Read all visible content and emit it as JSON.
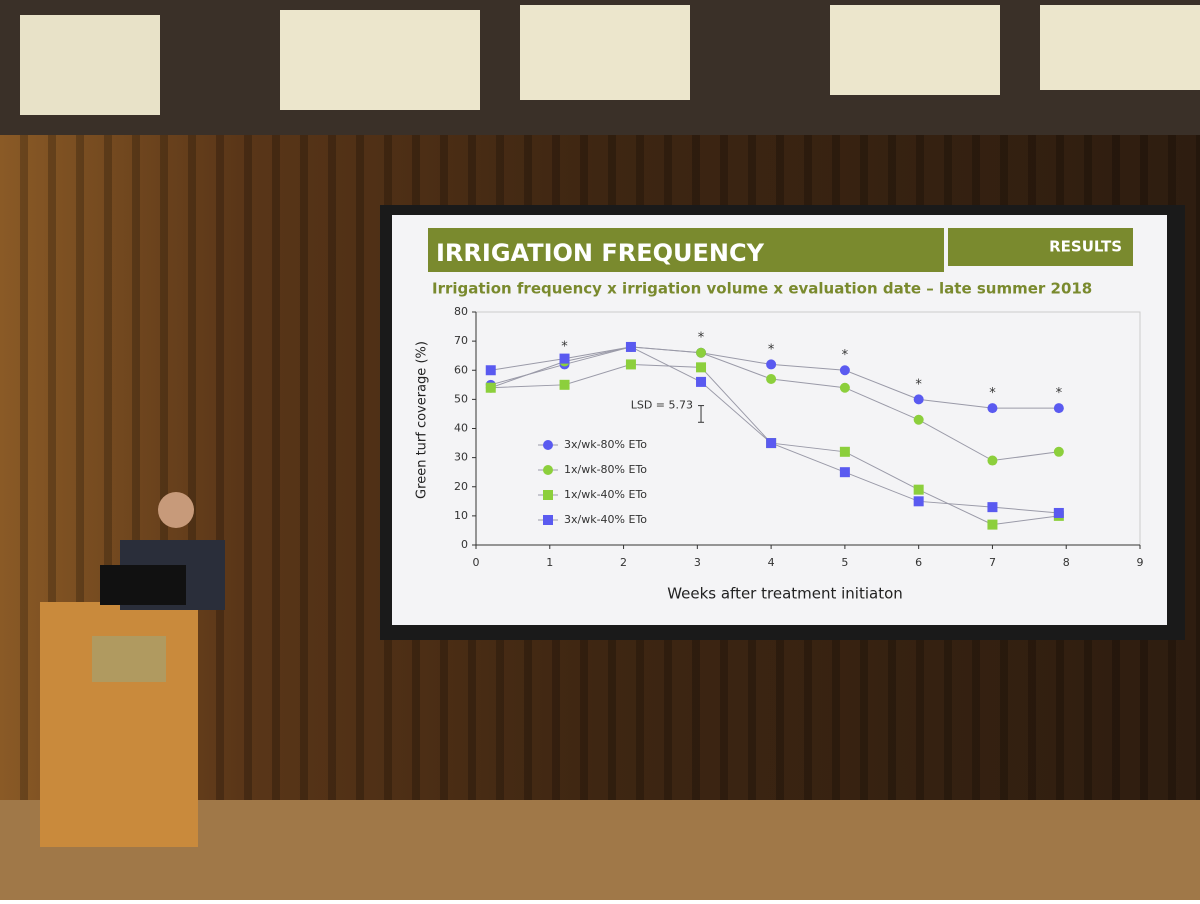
{
  "header": {
    "title": "IRRIGATION FREQUENCY",
    "section": "RESULTS"
  },
  "chart_data": {
    "type": "line",
    "title": "Irrigation frequency x irrigation volume x evaluation date – late summer 2018",
    "x_label": "Weeks after treatment initiaton",
    "y_label": "Green turf coverage (%)",
    "x": [
      0.2,
      1.2,
      2.1,
      3.05,
      4,
      5,
      6,
      7,
      7.9
    ],
    "series": [
      {
        "name": "3x/wk-80% ETo",
        "color": "#5a5af0",
        "marker": "circle",
        "values": [
          55,
          62,
          68,
          66,
          62,
          60,
          50,
          47,
          47
        ]
      },
      {
        "name": "1x/wk-80% ETo",
        "color": "#8ccf3c",
        "marker": "circle",
        "values": [
          54,
          63,
          68,
          66,
          57,
          54,
          43,
          29,
          32
        ]
      },
      {
        "name": "1x/wk-40% ETo",
        "color": "#8ccf3c",
        "marker": "square",
        "values": [
          54,
          55,
          62,
          61,
          35,
          32,
          19,
          7,
          10
        ]
      },
      {
        "name": "3x/wk-40% ETo",
        "color": "#5a5af0",
        "marker": "square",
        "values": [
          60,
          64,
          68,
          56,
          35,
          25,
          15,
          13,
          11
        ]
      }
    ],
    "significance_marks": [
      {
        "label": "*",
        "x": 1.2,
        "y": 68
      },
      {
        "label": "*",
        "x": 3.05,
        "y": 71
      },
      {
        "label": "*",
        "x": 4,
        "y": 67
      },
      {
        "label": "*",
        "x": 5,
        "y": 65
      },
      {
        "label": "*",
        "x": 6,
        "y": 55
      },
      {
        "label": "*",
        "x": 7,
        "y": 52
      },
      {
        "label": "*",
        "x": 7.9,
        "y": 52
      }
    ],
    "lsd": {
      "label": "LSD = 5.73",
      "value": 5.73,
      "x": 3.05,
      "y": 45
    },
    "xlim": [
      0,
      9
    ],
    "xticks": [
      0,
      1,
      2,
      3,
      4,
      5,
      6,
      7,
      8,
      9
    ],
    "ylim": [
      0,
      80
    ],
    "yticks": [
      0,
      10,
      20,
      30,
      40,
      50,
      60,
      70,
      80
    ],
    "grid": false,
    "legend_position": "left"
  }
}
